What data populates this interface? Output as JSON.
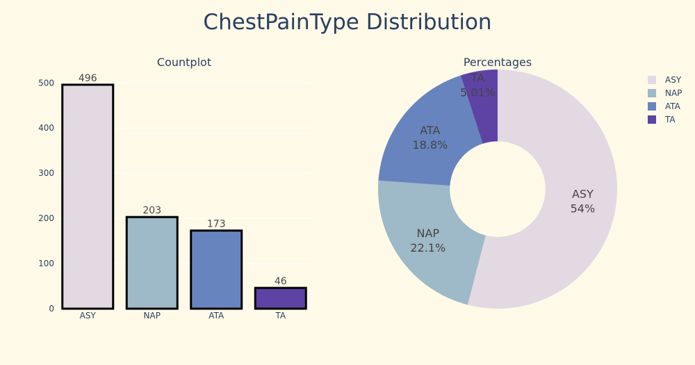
{
  "title": "ChestPainType Distribution",
  "colors": {
    "background": "#fffae8",
    "text": "#2a3f5f",
    "bar_outline": "#000000",
    "ASY": "#e2d9e2",
    "NAP": "#9eb9c7",
    "ATA": "#6784be",
    "TA": "#5e43a5"
  },
  "chart_data": [
    {
      "type": "bar",
      "title": "Countplot",
      "categories": [
        "ASY",
        "NAP",
        "ATA",
        "TA"
      ],
      "values": [
        496,
        203,
        173,
        46
      ],
      "data_labels": [
        "496",
        "203",
        "173",
        "46"
      ],
      "ylim": [
        0,
        522
      ],
      "yticks": [
        0,
        100,
        200,
        300,
        400,
        500
      ],
      "grid": true,
      "xlabel": "",
      "ylabel": ""
    },
    {
      "type": "pie",
      "title": "Percentages",
      "labels": [
        "ASY",
        "NAP",
        "ATA",
        "TA"
      ],
      "values": [
        496,
        203,
        173,
        46
      ],
      "percent_labels": [
        "54%",
        "22.1%",
        "18.8%",
        "5.01%"
      ],
      "hole": 0.4,
      "direction": "clockwise",
      "legend_position": "top-right",
      "legend": [
        "ASY",
        "NAP",
        "ATA",
        "TA"
      ]
    }
  ]
}
